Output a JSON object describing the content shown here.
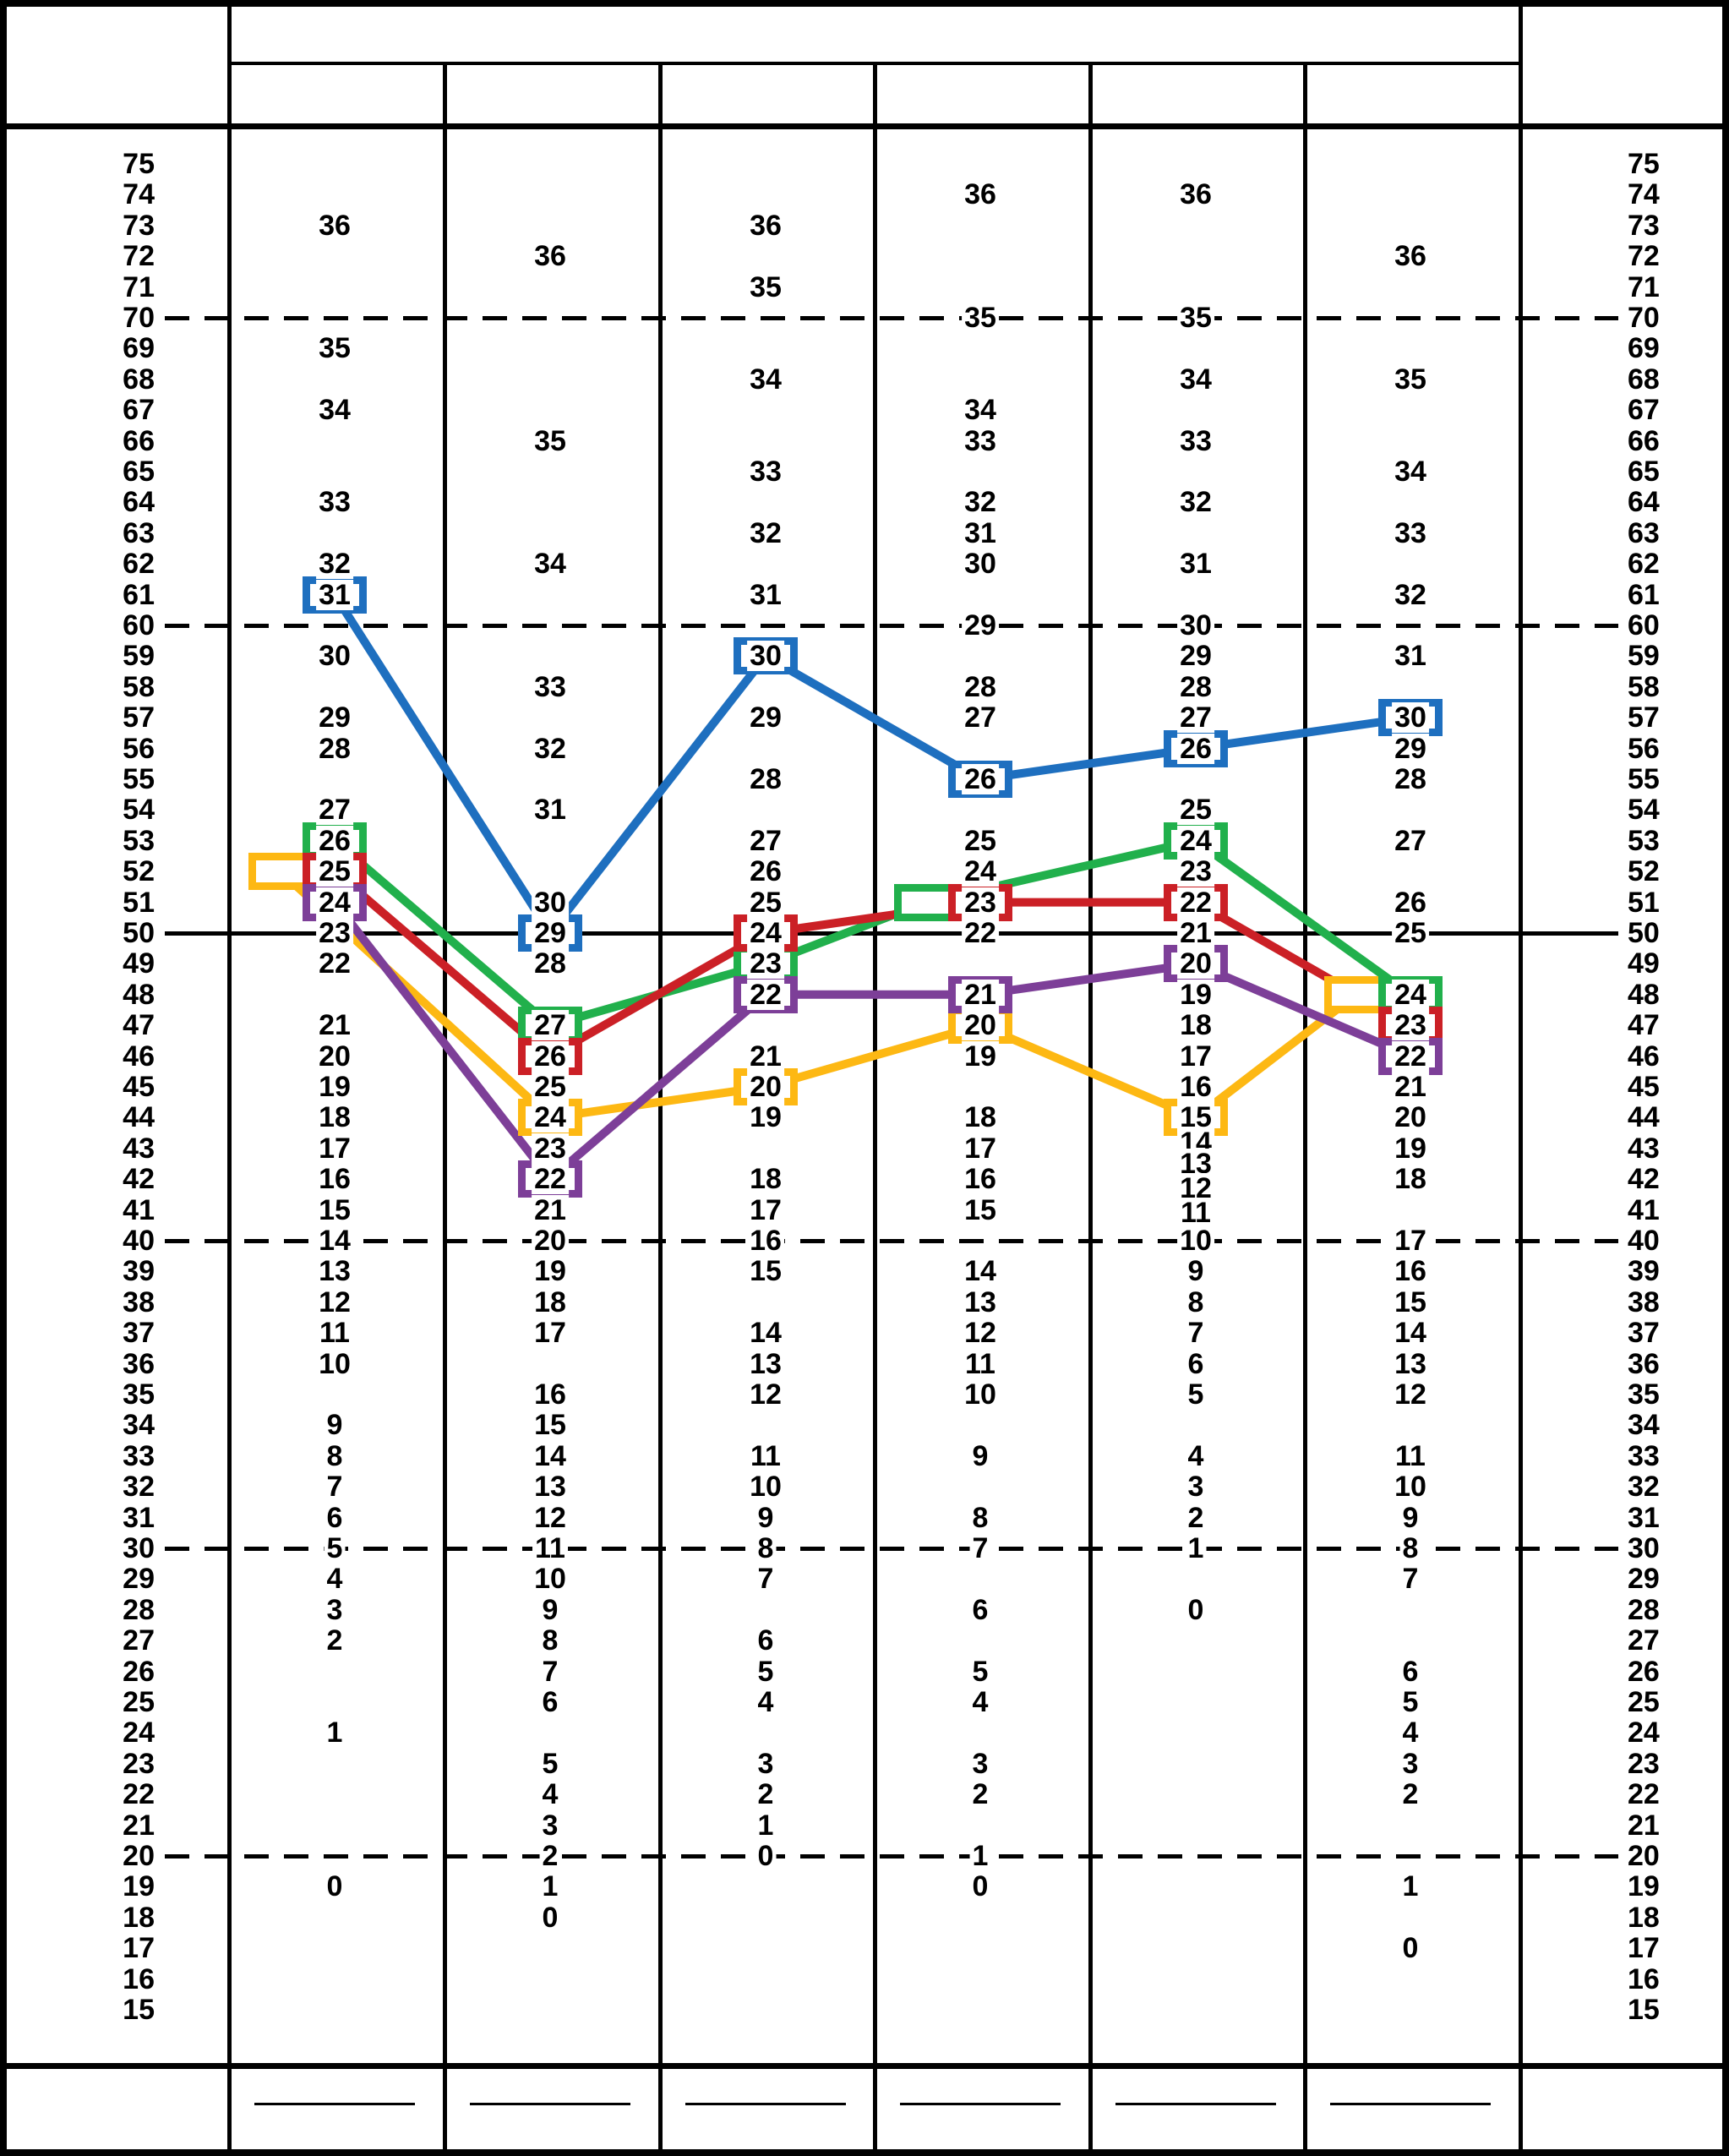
{
  "sheet": {
    "header": {
      "title_cell": "",
      "subheader_cells": [
        "",
        "",
        "",
        "",
        "",
        ""
      ]
    },
    "footer": {
      "blank_line_cells": 6
    }
  },
  "colors": {
    "blue": "#1e6fbf",
    "green": "#21b04c",
    "red": "#cb2026",
    "yellow": "#fdb813",
    "purple": "#7d3f98",
    "grid": "#000000"
  },
  "chart_data": {
    "type": "line",
    "title": "",
    "description": "Blank raw-score to T-score conversion profile grid: six scale columns list raw scores positioned at their T-score rows; colored boxes mark plotted raw scores joined by colored profile lines.",
    "t_axis": {
      "min": 15,
      "max": 75,
      "labels": [
        75,
        74,
        73,
        72,
        71,
        70,
        69,
        68,
        67,
        66,
        65,
        64,
        63,
        62,
        61,
        60,
        59,
        58,
        57,
        56,
        55,
        54,
        53,
        52,
        51,
        50,
        49,
        48,
        47,
        46,
        45,
        44,
        43,
        42,
        41,
        40,
        39,
        38,
        37,
        36,
        35,
        34,
        33,
        32,
        31,
        30,
        29,
        28,
        27,
        26,
        25,
        24,
        23,
        22,
        21,
        20,
        19,
        18,
        17,
        16,
        15
      ],
      "reference_lines": [
        {
          "t": 70,
          "style": "dashed"
        },
        {
          "t": 60,
          "style": "dashed"
        },
        {
          "t": 50,
          "style": "solid"
        },
        {
          "t": 40,
          "style": "dashed"
        },
        {
          "t": 30,
          "style": "dashed"
        },
        {
          "t": 20,
          "style": "dashed"
        }
      ]
    },
    "columns": [
      {
        "raw_to_t": [
          [
            36,
            73
          ],
          [
            35,
            69
          ],
          [
            34,
            67
          ],
          [
            33,
            64
          ],
          [
            32,
            62
          ],
          [
            31,
            61
          ],
          [
            30,
            59
          ],
          [
            29,
            57
          ],
          [
            28,
            56
          ],
          [
            27,
            54
          ],
          [
            26,
            53
          ],
          [
            25,
            52
          ],
          [
            24,
            51
          ],
          [
            23,
            50
          ],
          [
            22,
            49
          ],
          [
            21,
            47
          ],
          [
            20,
            46
          ],
          [
            19,
            45
          ],
          [
            18,
            44
          ],
          [
            17,
            43
          ],
          [
            16,
            42
          ],
          [
            15,
            41
          ],
          [
            14,
            40
          ],
          [
            13,
            39
          ],
          [
            12,
            38
          ],
          [
            11,
            37
          ],
          [
            10,
            36
          ],
          [
            9,
            34
          ],
          [
            8,
            33
          ],
          [
            7,
            32
          ],
          [
            6,
            31
          ],
          [
            5,
            30
          ],
          [
            4,
            29
          ],
          [
            3,
            28
          ],
          [
            2,
            27
          ],
          [
            1,
            24
          ],
          [
            0,
            19
          ]
        ]
      },
      {
        "raw_to_t": [
          [
            36,
            72
          ],
          [
            35,
            66
          ],
          [
            34,
            62
          ],
          [
            33,
            58
          ],
          [
            32,
            56
          ],
          [
            31,
            54
          ],
          [
            30,
            51
          ],
          [
            29,
            50
          ],
          [
            28,
            49
          ],
          [
            27,
            47
          ],
          [
            26,
            46
          ],
          [
            25,
            45
          ],
          [
            24,
            44
          ],
          [
            23,
            43
          ],
          [
            22,
            42
          ],
          [
            21,
            41
          ],
          [
            20,
            40
          ],
          [
            19,
            39
          ],
          [
            18,
            38
          ],
          [
            17,
            37
          ],
          [
            16,
            35
          ],
          [
            15,
            34
          ],
          [
            14,
            33
          ],
          [
            13,
            32
          ],
          [
            12,
            31
          ],
          [
            11,
            30
          ],
          [
            10,
            29
          ],
          [
            9,
            28
          ],
          [
            8,
            27
          ],
          [
            7,
            26
          ],
          [
            6,
            25
          ],
          [
            5,
            23
          ],
          [
            4,
            22
          ],
          [
            3,
            21
          ],
          [
            2,
            20
          ],
          [
            1,
            19
          ],
          [
            0,
            18
          ]
        ]
      },
      {
        "raw_to_t": [
          [
            36,
            73
          ],
          [
            35,
            71
          ],
          [
            34,
            68
          ],
          [
            33,
            65
          ],
          [
            32,
            63
          ],
          [
            31,
            61
          ],
          [
            30,
            59
          ],
          [
            29,
            57
          ],
          [
            28,
            55
          ],
          [
            27,
            53
          ],
          [
            26,
            52
          ],
          [
            25,
            51
          ],
          [
            24,
            50
          ],
          [
            23,
            49
          ],
          [
            22,
            48
          ],
          [
            21,
            46
          ],
          [
            20,
            45
          ],
          [
            19,
            44
          ],
          [
            18,
            42
          ],
          [
            17,
            41
          ],
          [
            16,
            40
          ],
          [
            15,
            39
          ],
          [
            14,
            37
          ],
          [
            13,
            36
          ],
          [
            12,
            35
          ],
          [
            11,
            33
          ],
          [
            10,
            32
          ],
          [
            9,
            31
          ],
          [
            8,
            30
          ],
          [
            7,
            29
          ],
          [
            6,
            27
          ],
          [
            5,
            26
          ],
          [
            4,
            25
          ],
          [
            3,
            23
          ],
          [
            2,
            22
          ],
          [
            1,
            21
          ],
          [
            0,
            20
          ]
        ]
      },
      {
        "raw_to_t": [
          [
            36,
            74
          ],
          [
            35,
            70
          ],
          [
            34,
            67
          ],
          [
            33,
            66
          ],
          [
            32,
            64
          ],
          [
            31,
            63
          ],
          [
            30,
            62
          ],
          [
            29,
            60
          ],
          [
            28,
            58
          ],
          [
            27,
            57
          ],
          [
            26,
            55
          ],
          [
            25,
            53
          ],
          [
            24,
            52
          ],
          [
            23,
            51
          ],
          [
            22,
            50
          ],
          [
            21,
            48
          ],
          [
            20,
            47
          ],
          [
            19,
            46
          ],
          [
            18,
            44
          ],
          [
            17,
            43
          ],
          [
            16,
            42
          ],
          [
            15,
            41
          ],
          [
            14,
            39
          ],
          [
            13,
            38
          ],
          [
            12,
            37
          ],
          [
            11,
            36
          ],
          [
            10,
            35
          ],
          [
            9,
            33
          ],
          [
            8,
            31
          ],
          [
            7,
            30
          ],
          [
            6,
            28
          ],
          [
            5,
            26
          ],
          [
            4,
            25
          ],
          [
            3,
            23
          ],
          [
            2,
            22
          ],
          [
            1,
            20
          ],
          [
            0,
            19
          ]
        ]
      },
      {
        "raw_to_t": [
          [
            36,
            74
          ],
          [
            35,
            70
          ],
          [
            34,
            68
          ],
          [
            33,
            66
          ],
          [
            32,
            64
          ],
          [
            31,
            62
          ],
          [
            30,
            60
          ],
          [
            29,
            59
          ],
          [
            28,
            58
          ],
          [
            27,
            57
          ],
          [
            26,
            56
          ],
          [
            25,
            54
          ],
          [
            24,
            53
          ],
          [
            23,
            52
          ],
          [
            22,
            51
          ],
          [
            21,
            50
          ],
          [
            20,
            49
          ],
          [
            19,
            48
          ],
          [
            18,
            47
          ],
          [
            17,
            46
          ],
          [
            16,
            45
          ],
          [
            15,
            44
          ],
          [
            14,
            43.2
          ],
          [
            13,
            42.5
          ],
          [
            12,
            41.7
          ],
          [
            11,
            40.9
          ],
          [
            10,
            40
          ],
          [
            9,
            39
          ],
          [
            8,
            38
          ],
          [
            7,
            37
          ],
          [
            6,
            36
          ],
          [
            5,
            35
          ],
          [
            4,
            33
          ],
          [
            3,
            32
          ],
          [
            2,
            31
          ],
          [
            1,
            30
          ],
          [
            0,
            28
          ]
        ]
      },
      {
        "raw_to_t": [
          [
            36,
            72
          ],
          [
            35,
            68
          ],
          [
            34,
            65
          ],
          [
            33,
            63
          ],
          [
            32,
            61
          ],
          [
            31,
            59
          ],
          [
            30,
            57
          ],
          [
            29,
            56
          ],
          [
            28,
            55
          ],
          [
            27,
            53
          ],
          [
            26,
            51
          ],
          [
            25,
            50
          ],
          [
            24,
            48
          ],
          [
            23,
            47
          ],
          [
            22,
            46
          ],
          [
            21,
            45
          ],
          [
            20,
            44
          ],
          [
            19,
            43
          ],
          [
            18,
            42
          ],
          [
            17,
            40
          ],
          [
            16,
            39
          ],
          [
            15,
            38
          ],
          [
            14,
            37
          ],
          [
            13,
            36
          ],
          [
            12,
            35
          ],
          [
            11,
            33
          ],
          [
            10,
            32
          ],
          [
            9,
            31
          ],
          [
            8,
            30
          ],
          [
            7,
            29
          ],
          [
            6,
            26
          ],
          [
            5,
            25
          ],
          [
            4,
            24
          ],
          [
            3,
            23
          ],
          [
            2,
            22
          ],
          [
            1,
            19
          ],
          [
            0,
            17
          ]
        ]
      }
    ],
    "series": [
      {
        "name": "blue",
        "color_key": "blue",
        "selected": [
          {
            "column": 1,
            "raw": 31,
            "t": 61
          },
          {
            "column": 2,
            "raw": 29,
            "t": 50
          },
          {
            "column": 3,
            "raw": 30,
            "t": 59
          },
          {
            "column": 4,
            "raw": 26,
            "t": 55
          },
          {
            "column": 5,
            "raw": 26,
            "t": 56
          },
          {
            "column": 6,
            "raw": 30,
            "t": 57
          }
        ]
      },
      {
        "name": "green",
        "color_key": "green",
        "selected": [
          {
            "column": 1,
            "raw": 26,
            "t": 53
          },
          {
            "column": 2,
            "raw": 27,
            "t": 47
          },
          {
            "column": 3,
            "raw": 23,
            "t": 49
          },
          {
            "column": 4,
            "raw": 23,
            "t": 51,
            "box_offset": true
          },
          {
            "column": 5,
            "raw": 24,
            "t": 53
          },
          {
            "column": 6,
            "raw": 24,
            "t": 48
          }
        ]
      },
      {
        "name": "red",
        "color_key": "red",
        "selected": [
          {
            "column": 1,
            "raw": 25,
            "t": 52
          },
          {
            "column": 2,
            "raw": 26,
            "t": 46
          },
          {
            "column": 3,
            "raw": 24,
            "t": 50
          },
          {
            "column": 4,
            "raw": 23,
            "t": 51
          },
          {
            "column": 5,
            "raw": 22,
            "t": 51
          },
          {
            "column": 6,
            "raw": 23,
            "t": 47
          }
        ]
      },
      {
        "name": "yellow",
        "color_key": "yellow",
        "selected": [
          {
            "column": 1,
            "raw": 25,
            "t": 52,
            "box_offset": true
          },
          {
            "column": 2,
            "raw": 24,
            "t": 44
          },
          {
            "column": 3,
            "raw": 20,
            "t": 45
          },
          {
            "column": 4,
            "raw": 20,
            "t": 47
          },
          {
            "column": 5,
            "raw": 15,
            "t": 44
          },
          {
            "column": 6,
            "raw": 24,
            "t": 48,
            "box_offset": true
          }
        ]
      },
      {
        "name": "purple",
        "color_key": "purple",
        "selected": [
          {
            "column": 1,
            "raw": 24,
            "t": 51
          },
          {
            "column": 2,
            "raw": 22,
            "t": 42
          },
          {
            "column": 3,
            "raw": 22,
            "t": 48
          },
          {
            "column": 4,
            "raw": 21,
            "t": 48
          },
          {
            "column": 5,
            "raw": 20,
            "t": 49
          },
          {
            "column": 6,
            "raw": 22,
            "t": 46
          }
        ]
      }
    ],
    "layout_hints": {
      "grid": "six score columns between left and right T-score axes",
      "reference_line_span": "axis label to axis label",
      "boxes": "white-filled colored rectangles around plotted raw scores; offset boxes are empty markers beside a shared number"
    }
  }
}
